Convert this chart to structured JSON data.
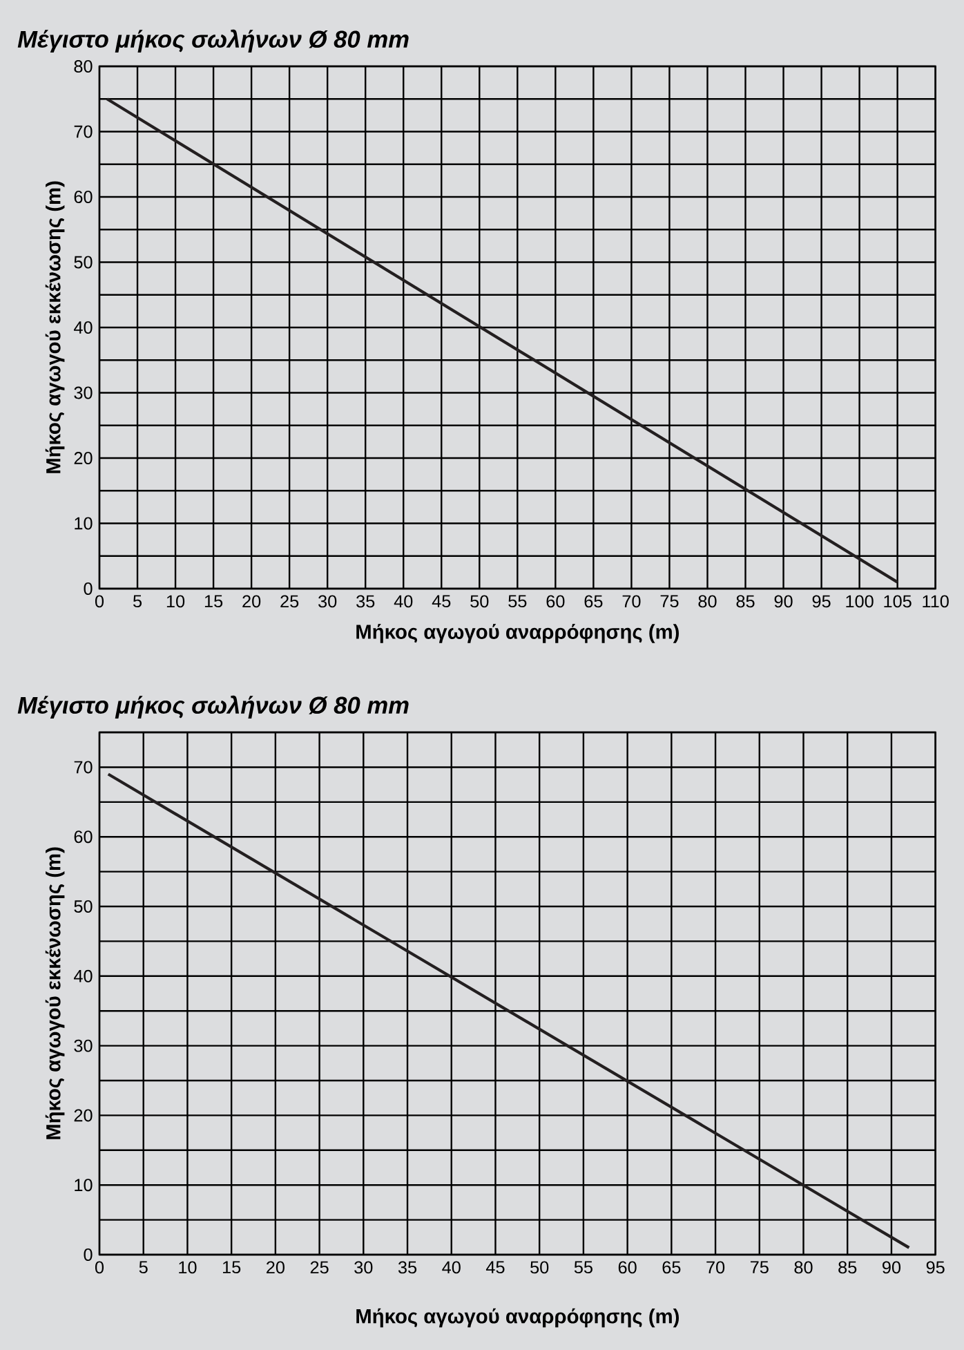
{
  "chart_data": [
    {
      "type": "line",
      "title": "Μέγιστο μήκος σωλήνων Ø 80 mm",
      "xlabel": "Μήκος αγωγού αναρρόφησης (m)",
      "ylabel": "Μήκος αγωγού εκκένωσης (m)",
      "x": [
        1,
        105
      ],
      "series": [
        {
          "color": "#231f20",
          "values": [
            75,
            1
          ]
        }
      ],
      "xlim": [
        0,
        110
      ],
      "xticks": [
        0,
        5,
        10,
        15,
        20,
        25,
        30,
        35,
        40,
        45,
        50,
        55,
        60,
        65,
        70,
        75,
        80,
        85,
        90,
        95,
        100,
        105,
        110
      ],
      "ylim": [
        0,
        80
      ],
      "yticks": [
        0,
        {
          "value": 5,
          "label": null
        },
        10,
        {
          "value": 15,
          "label": null
        },
        20,
        {
          "value": 25,
          "label": null
        },
        30,
        {
          "value": 35,
          "label": null
        },
        40,
        {
          "value": 45,
          "label": null
        },
        50,
        {
          "value": 55,
          "label": null
        },
        60,
        {
          "value": 65,
          "label": null
        },
        70,
        {
          "value": 75,
          "label": null
        },
        80
      ],
      "grid": true,
      "marker": "none",
      "line_style": "solid"
    },
    {
      "type": "line",
      "title": "Μέγιστο μήκος σωλήνων Ø 80 mm",
      "xlabel": "Μήκος αγωγού αναρρόφησης (m)",
      "ylabel": "Μήκος αγωγού εκκένωσης (m)",
      "x": [
        1,
        92
      ],
      "series": [
        {
          "color": "#231f20",
          "values": [
            69,
            1
          ]
        }
      ],
      "xlim": [
        0,
        95
      ],
      "xticks": [
        0,
        5,
        10,
        15,
        20,
        25,
        30,
        35,
        40,
        45,
        50,
        55,
        60,
        65,
        70,
        75,
        80,
        85,
        90,
        95
      ],
      "ylim": [
        0,
        75
      ],
      "yticks": [
        0,
        {
          "value": 5,
          "label": null
        },
        10,
        {
          "value": 15,
          "label": null
        },
        20,
        {
          "value": 25,
          "label": null
        },
        30,
        {
          "value": 35,
          "label": null
        },
        40,
        {
          "value": 45,
          "label": null
        },
        50,
        {
          "value": 55,
          "label": null
        },
        60,
        {
          "value": 65,
          "label": null
        },
        70,
        {
          "value": 75,
          "label": null
        }
      ],
      "grid": true,
      "marker": "none",
      "line_style": "solid"
    }
  ]
}
